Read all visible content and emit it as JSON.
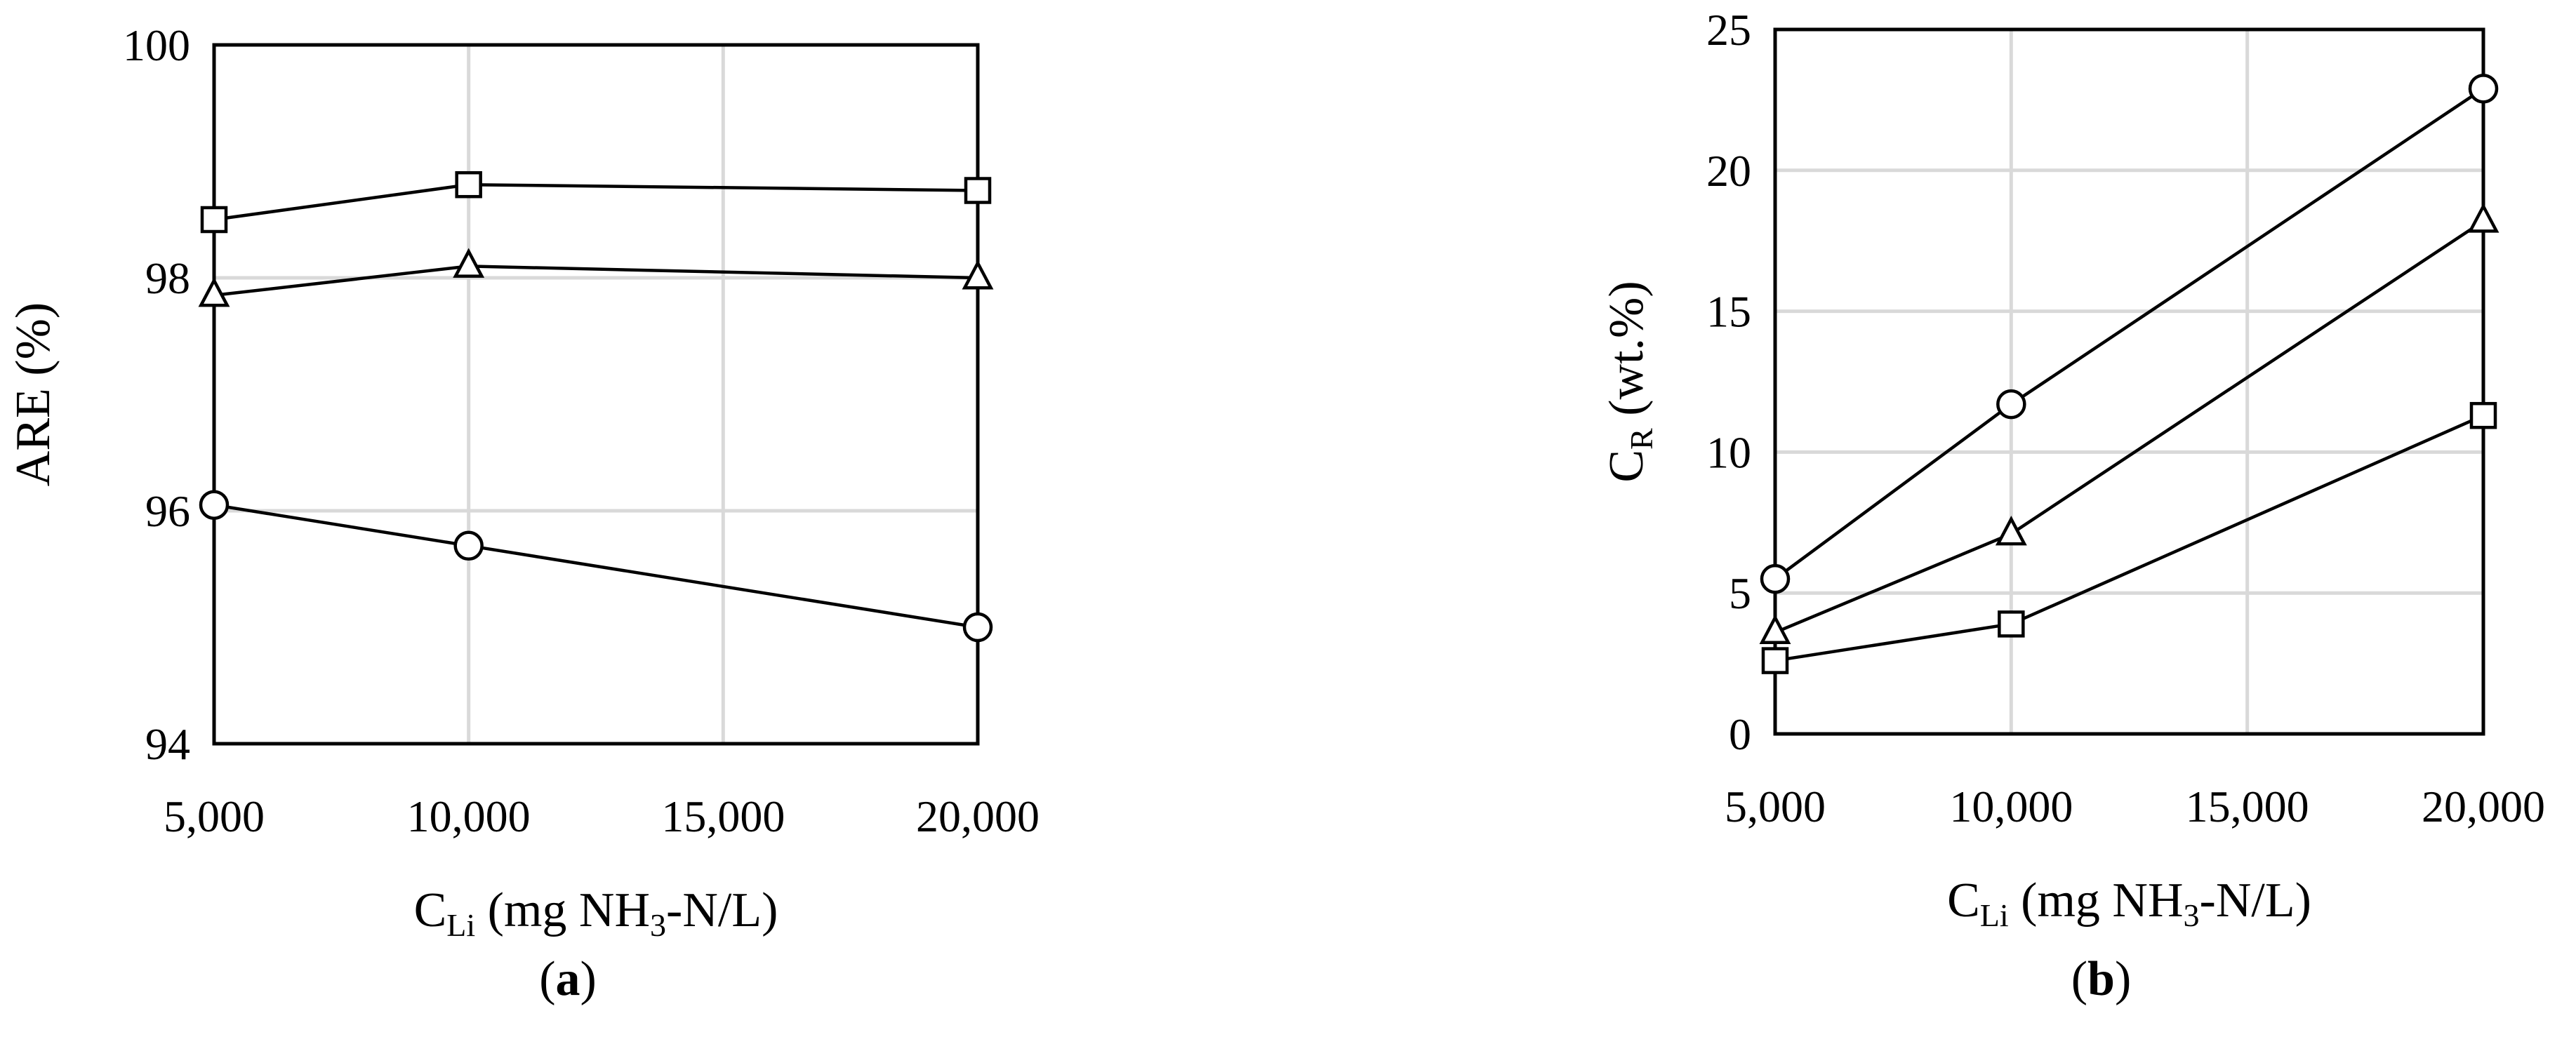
{
  "chart_data": [
    {
      "type": "line",
      "panel_label": "a",
      "xlabel": {
        "base": "C",
        "sub": "Li",
        "rest_before": " (mg NH",
        "sub2": "3",
        "rest_after": "-N/L)"
      },
      "ylabel": "ARE (%)",
      "xlim": [
        5000,
        20000
      ],
      "ylim": [
        94,
        100
      ],
      "x_ticks": [
        5000,
        10000,
        15000,
        20000
      ],
      "x_tick_labels": [
        "5,000",
        "10,000",
        "15,000",
        "20,000"
      ],
      "y_ticks": [
        94,
        96,
        98,
        100
      ],
      "y_tick_labels": [
        "94",
        "96",
        "98",
        "100"
      ],
      "grid": true,
      "series": [
        {
          "marker": "square",
          "x": [
            5000,
            10000,
            20000
          ],
          "values": [
            98.5,
            98.8,
            98.75
          ]
        },
        {
          "marker": "triangle",
          "x": [
            5000,
            10000,
            20000
          ],
          "values": [
            97.85,
            98.1,
            98.0
          ]
        },
        {
          "marker": "circle",
          "x": [
            5000,
            10000,
            20000
          ],
          "values": [
            96.05,
            95.7,
            95.0
          ]
        }
      ]
    },
    {
      "type": "line",
      "panel_label": "b",
      "xlabel": {
        "base": "C",
        "sub": "Li",
        "rest_before": " (mg NH",
        "sub2": "3",
        "rest_after": "-N/L)"
      },
      "ylabel": {
        "base": "C",
        "sub": "R",
        "rest": " (wt.%)"
      },
      "xlim": [
        5000,
        20000
      ],
      "ylim": [
        0,
        25
      ],
      "x_ticks": [
        5000,
        10000,
        15000,
        20000
      ],
      "x_tick_labels": [
        "5,000",
        "10,000",
        "15,000",
        "20,000"
      ],
      "y_ticks": [
        0,
        5,
        10,
        15,
        20,
        25
      ],
      "y_tick_labels": [
        "0",
        "5",
        "10",
        "15",
        "20",
        "25"
      ],
      "grid": true,
      "series": [
        {
          "marker": "circle",
          "x": [
            5000,
            10000,
            20000
          ],
          "values": [
            5.5,
            11.7,
            22.9
          ]
        },
        {
          "marker": "triangle",
          "x": [
            5000,
            10000,
            20000
          ],
          "values": [
            3.6,
            7.1,
            18.2
          ]
        },
        {
          "marker": "square",
          "x": [
            5000,
            10000,
            20000
          ],
          "values": [
            2.6,
            3.9,
            11.3
          ]
        }
      ]
    }
  ]
}
